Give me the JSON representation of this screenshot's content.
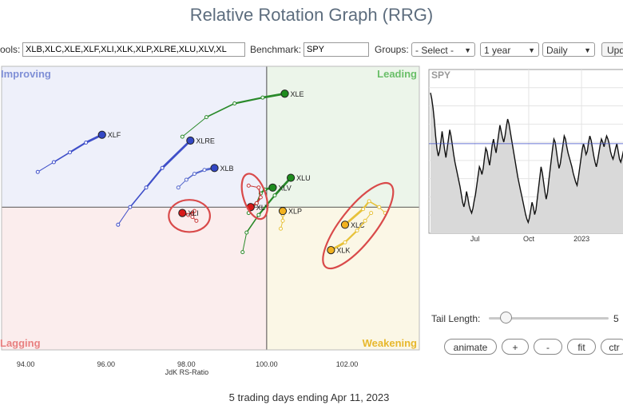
{
  "page": {
    "title": "Relative Rotation Graph (RRG)",
    "footer": "5 trading days ending Apr 11, 2023"
  },
  "controls": {
    "symbols_label": "ools:",
    "symbols_value": "XLB,XLC,XLE,XLF,XLI,XLK,XLP,XLRE,XLU,XLV,XL",
    "benchmark_label": "Benchmark:",
    "benchmark_value": "SPY",
    "groups_label": "Groups:",
    "groups_value": "- Select -",
    "period_value": "1 year",
    "interval_value": "Daily",
    "update_label": "Upd"
  },
  "side": {
    "tail_length_label": "Tail Length:",
    "tail_length_value": "5",
    "buttons": {
      "animate": "animate",
      "plus": "+",
      "minus": "-",
      "fit": "fit",
      "ctr": "ctr"
    }
  },
  "colors": {
    "improving": "#7f8fd6",
    "leading": "#6abf69",
    "lagging": "#e88080",
    "weakening": "#e7b82d",
    "annotation": "#d94a4a"
  },
  "chart_data": [
    {
      "type": "scatter",
      "xlabel": "JdK RS-Ratio",
      "xlim": [
        93.4,
        103.8
      ],
      "ylim": [
        96.35,
        103.6
      ],
      "center": [
        100,
        100
      ],
      "x_ticks": [
        "94.00",
        "96.00",
        "98.00",
        "100.00",
        "102.00"
      ],
      "quadrants": [
        "Improving",
        "Leading",
        "Lagging",
        "Weakening"
      ],
      "series": [
        {
          "name": "XLE",
          "color": "#2a8a2a",
          "fill": "#1e8c1e",
          "points": [
            [
              97.9,
              101.8
            ],
            [
              98.5,
              102.3
            ],
            [
              99.2,
              102.65
            ],
            [
              99.9,
              102.8
            ],
            [
              100.45,
              102.9
            ]
          ]
        },
        {
          "name": "XLF",
          "color": "#3f4fc9",
          "fill": "#3347c4",
          "points": [
            [
              94.3,
              100.9
            ],
            [
              94.7,
              101.15
            ],
            [
              95.1,
              101.4
            ],
            [
              95.5,
              101.65
            ],
            [
              95.9,
              101.85
            ]
          ]
        },
        {
          "name": "XLRE",
          "color": "#3f4fc9",
          "fill": "#3347c4",
          "points": [
            [
              96.3,
              99.55
            ],
            [
              96.6,
              100.0
            ],
            [
              97.0,
              100.5
            ],
            [
              97.4,
              101.0
            ],
            [
              98.1,
              101.7
            ]
          ]
        },
        {
          "name": "XLB",
          "color": "#5568cc",
          "fill": "#3347c4",
          "points": [
            [
              97.8,
              100.5
            ],
            [
              98.0,
              100.7
            ],
            [
              98.2,
              100.85
            ],
            [
              98.45,
              100.95
            ],
            [
              98.7,
              101.0
            ]
          ]
        },
        {
          "name": "XLU",
          "color": "#2a8a2a",
          "fill": "#1e8c1e",
          "points": [
            [
              99.4,
              98.85
            ],
            [
              99.5,
              99.35
            ],
            [
              99.8,
              99.8
            ],
            [
              100.2,
              100.3
            ],
            [
              100.6,
              100.75
            ]
          ]
        },
        {
          "name": "XLV",
          "color": "#2a8a2a",
          "fill": "#1e8c1e",
          "points": [
            [
              99.55,
              99.85
            ],
            [
              99.75,
              100.1
            ],
            [
              99.85,
              100.35
            ],
            [
              99.95,
              100.45
            ],
            [
              100.15,
              100.5
            ]
          ]
        },
        {
          "name": "XLY",
          "color": "#c83838",
          "fill": "#d81a1a",
          "points": [
            [
              99.55,
              100.55
            ],
            [
              99.8,
              100.5
            ],
            [
              99.85,
              100.25
            ],
            [
              99.75,
              100.1
            ],
            [
              99.6,
              100.0
            ]
          ]
        },
        {
          "name": "XLI",
          "color": "#c83838",
          "fill": "#d81a1a",
          "points": [
            [
              98.25,
              99.65
            ],
            [
              98.15,
              99.75
            ],
            [
              98.2,
              99.9
            ],
            [
              98.05,
              99.8
            ],
            [
              97.9,
              99.85
            ]
          ]
        },
        {
          "name": "XLP",
          "color": "#e7c23a",
          "fill": "#f2b21f",
          "points": [
            [
              100.35,
              99.45
            ],
            [
              100.4,
              99.65
            ],
            [
              100.4,
              99.8
            ],
            [
              100.42,
              99.9
            ],
            [
              100.4,
              99.9
            ]
          ]
        },
        {
          "name": "XLC",
          "color": "#e7c23a",
          "fill": "#f2b21f",
          "points": [
            [
              102.95,
              99.85
            ],
            [
              102.8,
              100.0
            ],
            [
              102.55,
              100.15
            ],
            [
              102.4,
              99.95
            ],
            [
              101.95,
              99.55
            ]
          ]
        },
        {
          "name": "XLK",
          "color": "#e7c23a",
          "fill": "#f2b21f",
          "points": [
            [
              102.6,
              99.85
            ],
            [
              102.45,
              99.65
            ],
            [
              102.25,
              99.4
            ],
            [
              101.95,
              99.1
            ],
            [
              101.6,
              98.9
            ]
          ]
        }
      ],
      "annotations": [
        "XLY",
        "XLI",
        "XLC",
        "XLK"
      ]
    },
    {
      "type": "line",
      "title": "SPY",
      "x_ticks": [
        "Jul",
        "Oct",
        "2023"
      ],
      "ylim": [
        0,
        100
      ],
      "reference_value": 55,
      "values": [
        88,
        84,
        78,
        70,
        60,
        52,
        47,
        50,
        56,
        63,
        57,
        51,
        46,
        52,
        58,
        64,
        60,
        54,
        48,
        43,
        39,
        35,
        31,
        27,
        22,
        17,
        14,
        18,
        24,
        20,
        15,
        12,
        10,
        13,
        18,
        22,
        28,
        34,
        40,
        38,
        35,
        39,
        46,
        52,
        50,
        45,
        41,
        47,
        54,
        58,
        53,
        49,
        55,
        61,
        67,
        63,
        59,
        56,
        60,
        66,
        71,
        68,
        63,
        58,
        53,
        48,
        43,
        38,
        33,
        29,
        25,
        21,
        17,
        13,
        9,
        6,
        4,
        7,
        12,
        17,
        14,
        9,
        12,
        19,
        26,
        33,
        40,
        36,
        30,
        24,
        19,
        23,
        31,
        38,
        45,
        52,
        58,
        56,
        50,
        44,
        39,
        42,
        48,
        54,
        60,
        58,
        53,
        49,
        46,
        43,
        40,
        36,
        33,
        30,
        28,
        33,
        39,
        45,
        51,
        55,
        52,
        48,
        50,
        56,
        60,
        57,
        52,
        47,
        43,
        40,
        44,
        49,
        54,
        58,
        56,
        53,
        57,
        60,
        58,
        55,
        50,
        47,
        45,
        48,
        52,
        55,
        50,
        45,
        43,
        46,
        50,
        53
      ]
    }
  ]
}
